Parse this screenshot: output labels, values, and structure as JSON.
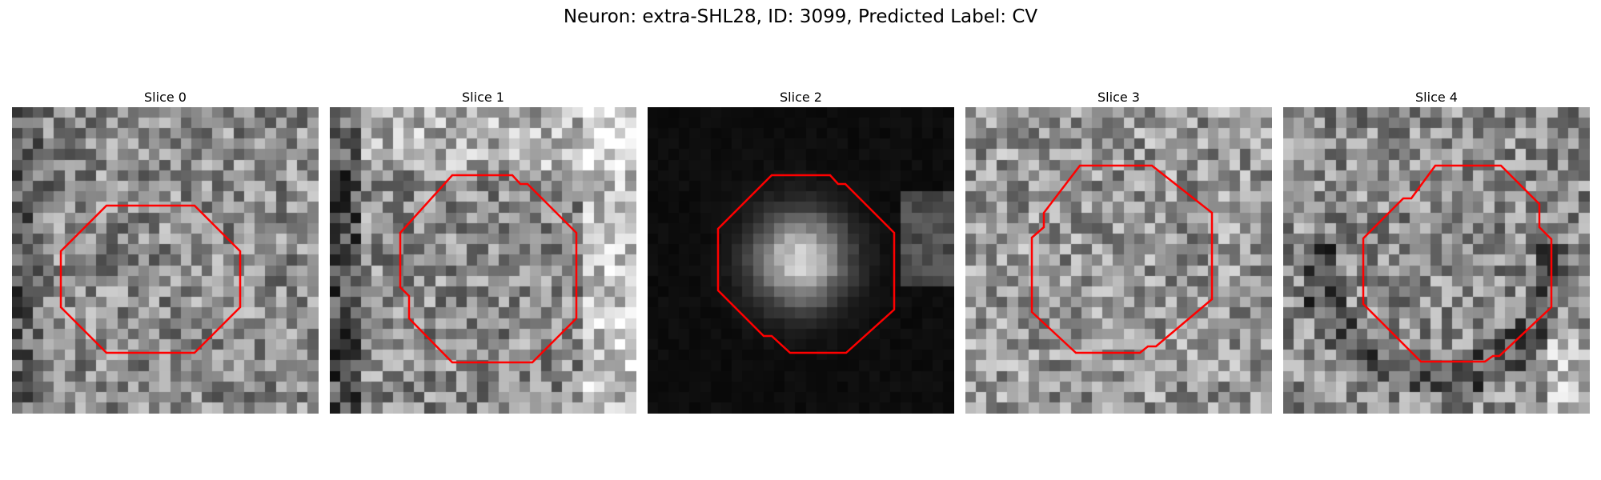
{
  "figure": {
    "title": "Neuron: extra-SHL28, ID: 3099, Predicted Label: CV"
  },
  "panels": [
    {
      "title": "Slice 0",
      "kind": "noise_dark_edge",
      "seed": 11
    },
    {
      "title": "Slice 1",
      "kind": "noise_bright_right",
      "seed": 23
    },
    {
      "title": "Slice 2",
      "kind": "blob",
      "seed": 37
    },
    {
      "title": "Slice 3",
      "kind": "noise",
      "seed": 51
    },
    {
      "title": "Slice 4",
      "kind": "noise_ring",
      "seed": 67
    }
  ],
  "style": {
    "contour_color": "#ff0000"
  }
}
